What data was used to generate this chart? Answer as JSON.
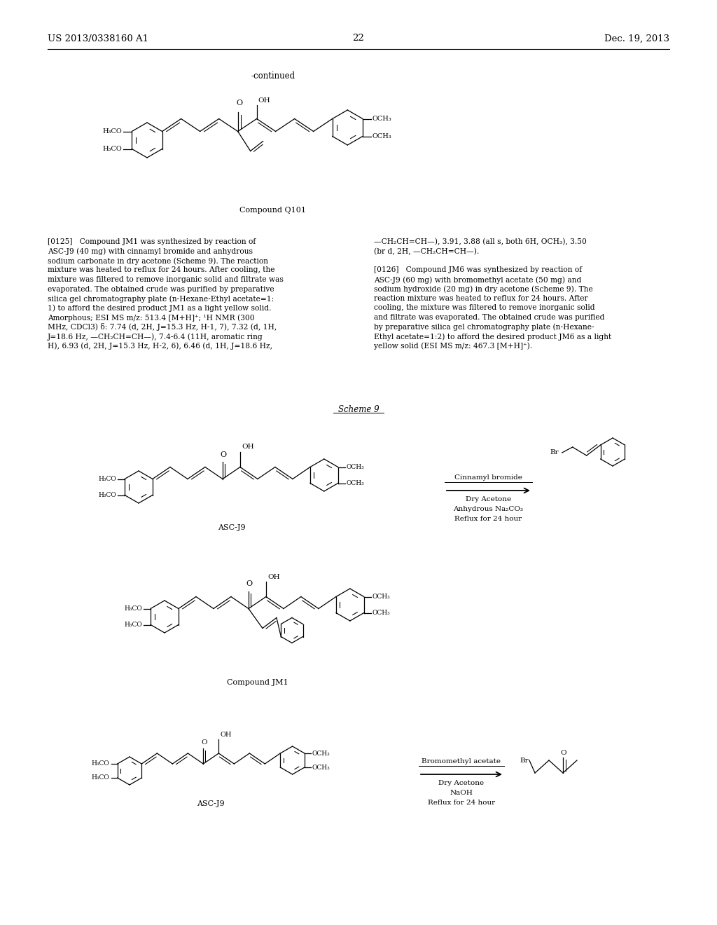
{
  "bg_color": "#ffffff",
  "header_left": "US 2013/0338160 A1",
  "header_right": "Dec. 19, 2013",
  "page_number": "22",
  "continued_label": "-continued",
  "compound_q101_label": "Compound Q101",
  "scheme9_label": "Scheme 9",
  "asc_j9_label": "ASC-J9",
  "compound_jm1_label": "Compound JM1",
  "cinnamyl_bromide_label": "Cinnamyl bromide",
  "dry_acetone1": "Dry Acetone",
  "anhydrous_na2co3": "Anhydrous Na₂CO₃",
  "reflux_24h": "Reflux for 24 hour",
  "bromomethyl_acetate_label": "Bromomethyl acetate",
  "dry_acetone2": "Dry Acetone",
  "naoh": "NaOH",
  "reflux_24h2": "Reflux for 24 hour",
  "para125_lines": [
    "[0125]   Compound JM1 was synthesized by reaction of",
    "ASC-J9 (40 mg) with cinnamyl bromide and anhydrous",
    "sodium carbonate in dry acetone (Scheme 9). The reaction",
    "mixture was heated to reflux for 24 hours. After cooling, the",
    "mixture was filtered to remove inorganic solid and filtrate was",
    "evaporated. The obtained crude was purified by preparative",
    "silica gel chromatography plate (n-Hexane-Ethyl acetate=1:",
    "1) to afford the desired product JM1 as a light yellow solid.",
    "Amorphous; ESI MS m/z: 513.4 [M+H]⁺; ¹H NMR (300",
    "MHz, CDCl3) δ: 7.74 (d, 2H, J=15.3 Hz, H-1, 7), 7.32 (d, 1H,",
    "J=18.6 Hz, —CH₂CH=CH—), 7.4-6.4 (11H, aromatic ring",
    "H), 6.93 (d, 2H, J=15.3 Hz, H-2, 6), 6.46 (d, 1H, J=18.6 Hz,"
  ],
  "para125_right_lines": [
    "—CH₂CH=CH—), 3.91, 3.88 (all s, both 6H, OCH₃), 3.50",
    "(br d, 2H, —CH₂CH=CH—)."
  ],
  "para126_lines": [
    "[0126]   Compound JM6 was synthesized by reaction of",
    "ASC-J9 (60 mg) with bromomethyl acetate (50 mg) and",
    "sodium hydroxide (20 mg) in dry acetone (Scheme 9). The",
    "reaction mixture was heated to reflux for 24 hours. After",
    "cooling, the mixture was filtered to remove inorganic solid",
    "and filtrate was evaporated. The obtained crude was purified",
    "by preparative silica gel chromatography plate (n-Hexane-",
    "Ethyl acetate=1:2) to afford the desired product JM6 as a light",
    "yellow solid (ESI MS m/z: 467.3 [M+H]⁺)."
  ]
}
